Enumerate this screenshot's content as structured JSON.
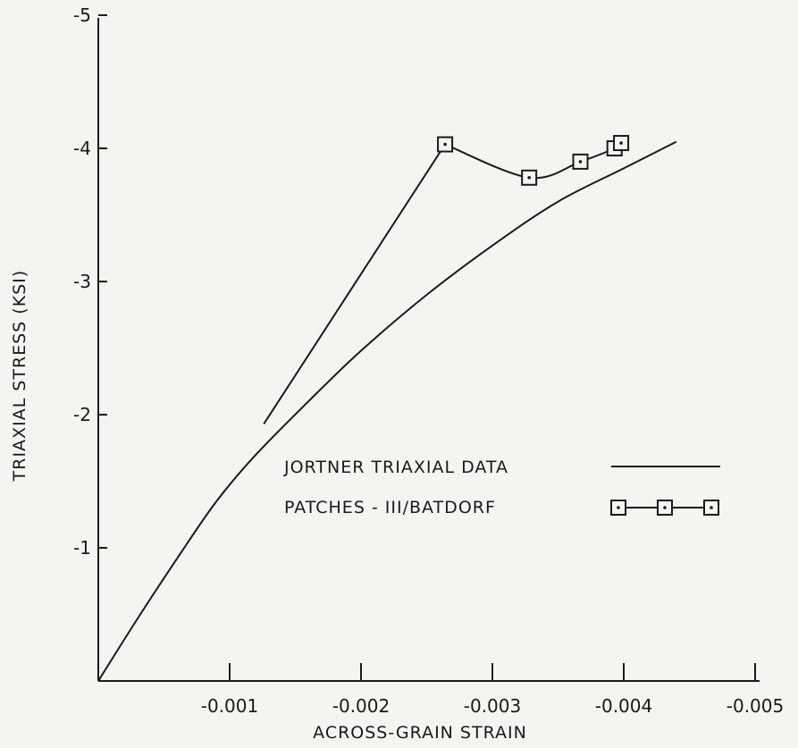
{
  "chart_data": {
    "type": "line",
    "xlabel": "ACROSS-GRAIN STRAIN",
    "ylabel": "TRIAXIAL STRESS (KSI)",
    "xlim": [
      0,
      -0.005
    ],
    "ylim": [
      0,
      -5
    ],
    "x_ticks": [
      -0.001,
      -0.002,
      -0.003,
      -0.004,
      -0.005
    ],
    "x_tick_labels": [
      "-0.001",
      "-0.002",
      "-0.003",
      "-0.004",
      "-0.005"
    ],
    "y_ticks": [
      -1,
      -2,
      -3,
      -4,
      -5
    ],
    "y_tick_labels": [
      "-1",
      "-2",
      "-3",
      "-4",
      "-5"
    ],
    "grid": false,
    "legend_position": "center-right",
    "series": [
      {
        "name": "JORTNER TRIAXIAL DATA",
        "style": "line",
        "x": [
          0,
          -0.0003,
          -0.0006,
          -0.0009,
          -0.0012,
          -0.0016,
          -0.002,
          -0.0025,
          -0.003,
          -0.0035,
          -0.004,
          -0.0044
        ],
        "y": [
          0,
          -0.47,
          -0.92,
          -1.35,
          -1.7,
          -2.1,
          -2.48,
          -2.9,
          -3.27,
          -3.6,
          -3.85,
          -4.05
        ]
      },
      {
        "name": "",
        "style": "line",
        "x": [
          -0.00126,
          -0.00264
        ],
        "y": [
          -1.93,
          -4.03
        ]
      },
      {
        "name": "PATCHES - III/BATDORF",
        "style": "line-square-markers",
        "x": [
          -0.00264,
          -0.00328,
          -0.00367,
          -0.00393,
          -0.00398
        ],
        "y": [
          -4.03,
          -3.78,
          -3.9,
          -4.0,
          -4.04
        ]
      }
    ],
    "legend": [
      {
        "label": "JORTNER TRIAXIAL DATA",
        "marker": "line"
      },
      {
        "label": "PATCHES - III/BATDORF",
        "marker": "square-dot-line"
      }
    ],
    "colors": {
      "line": "#1a1a1a",
      "background": "#f4f4f1"
    }
  }
}
